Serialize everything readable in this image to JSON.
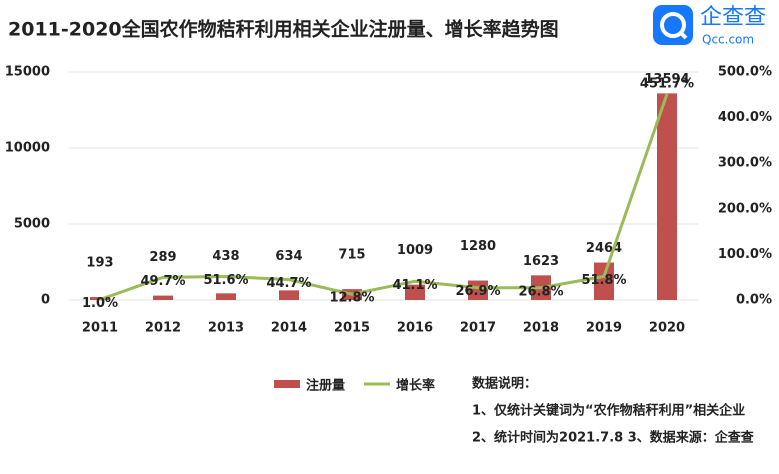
{
  "chart_data": {
    "type": "bar",
    "title": "2011-2020全国农作物秸秆利用相关企业注册量、增长率趋势图",
    "categories": [
      "2011",
      "2012",
      "2013",
      "2014",
      "2015",
      "2016",
      "2017",
      "2018",
      "2019",
      "2020"
    ],
    "series": [
      {
        "name": "注册量",
        "type": "bar",
        "color": "#c0504d",
        "values": [
          193,
          289,
          438,
          634,
          715,
          1009,
          1280,
          1623,
          2464,
          13594
        ]
      },
      {
        "name": "增长率",
        "type": "line",
        "axis": "y2",
        "color": "#9bbb59",
        "values": [
          1.0,
          49.7,
          51.6,
          44.7,
          12.8,
          41.1,
          26.9,
          26.8,
          51.8,
          451.7
        ],
        "value_labels": [
          "1.0%",
          "49.7%",
          "51.6%",
          "44.7%",
          "12.8%",
          "41.1%",
          "26.9%",
          "26.8%",
          "51.8%",
          "451.7%"
        ]
      }
    ],
    "ylim": [
      0,
      15000
    ],
    "yticks": [
      0,
      5000,
      10000,
      15000
    ],
    "y2lim": [
      0,
      500
    ],
    "y2ticks": [
      {
        "value": 0,
        "label": "0.0%"
      },
      {
        "value": 100,
        "label": "100.0%"
      },
      {
        "value": 200,
        "label": "200.0%"
      },
      {
        "value": 300,
        "label": "300.0%"
      },
      {
        "value": 400,
        "label": "400.0%"
      },
      {
        "value": 500,
        "label": "500.0%"
      }
    ],
    "grid": true,
    "legend": "bottom"
  },
  "logo": {
    "name": "企查查",
    "domain": "Qcc.com"
  },
  "notes": {
    "heading": "数据说明：",
    "lines": [
      "1、仅统计关键词为“农作物秸秆利用”相关企业",
      "2、统计时间为2021.7.8 3、数据来源：企查查"
    ]
  }
}
